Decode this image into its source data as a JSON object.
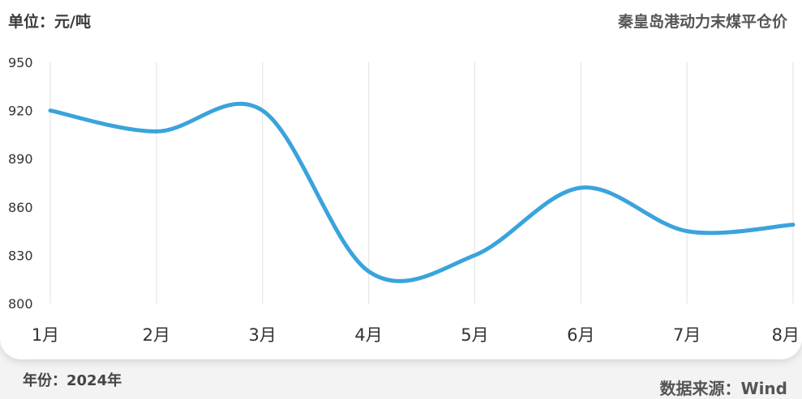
{
  "header": {
    "unit": "单位：元/吨",
    "title": "秦皇岛港动力末煤平仓价"
  },
  "footer": {
    "year": "年份：2024年",
    "source": "数据来源：Wind"
  },
  "colors": {
    "line": "#3aa3dc",
    "grid": "#e6e6e6",
    "card": "#ffffff",
    "background": "#f3f3f3"
  },
  "chart_data": {
    "type": "line",
    "title": "秦皇岛港动力末煤平仓价",
    "xlabel": "",
    "ylabel": "单位：元/吨",
    "categories": [
      "1月",
      "2月",
      "3月",
      "4月",
      "5月",
      "6月",
      "7月",
      "8月"
    ],
    "y_ticks": [
      950,
      920,
      890,
      860,
      830,
      800
    ],
    "ylim": [
      800,
      950
    ],
    "grid": "vertical",
    "smooth": true,
    "series": [
      {
        "values": [
          920,
          907,
          920,
          820,
          830,
          872,
          845,
          849
        ]
      }
    ]
  }
}
